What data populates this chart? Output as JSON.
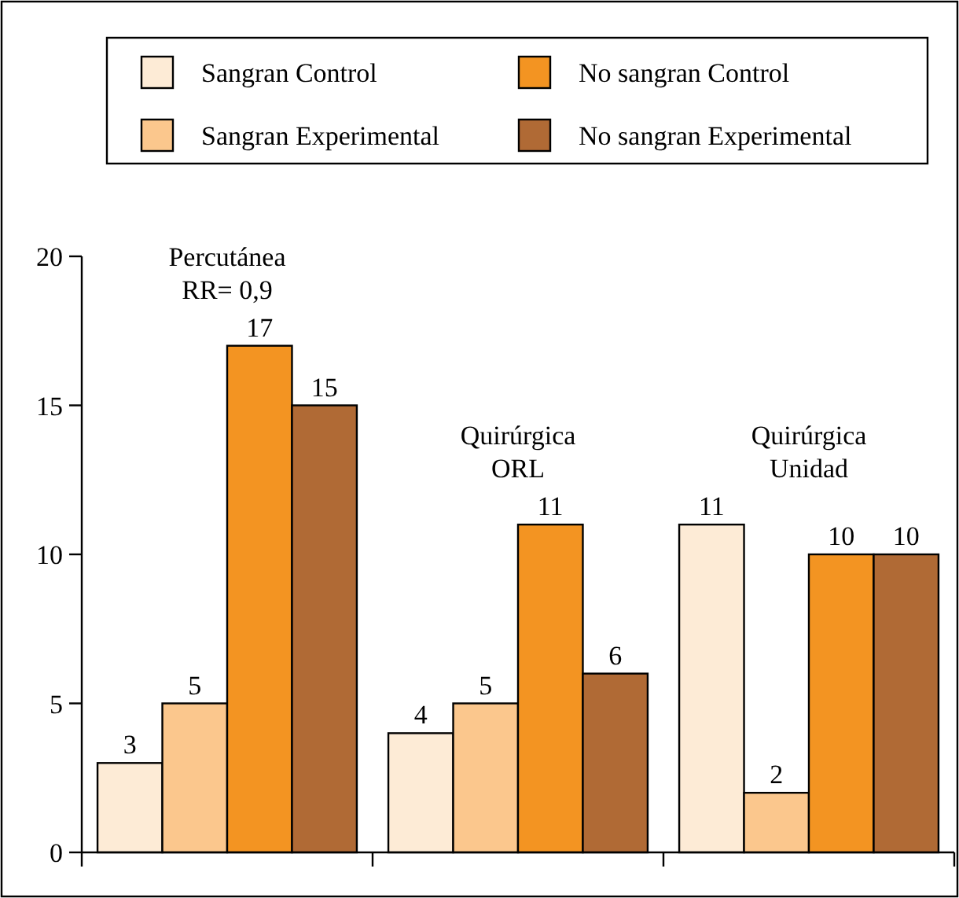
{
  "chart_data": {
    "type": "bar",
    "categories": [
      "Percutánea\nRR= 0,9",
      "Quirúrgica\nORL",
      "Quirúrgica\nUnidad"
    ],
    "series": [
      {
        "name": "Sangran Control",
        "color": "#fdebd6",
        "values": [
          3,
          4,
          11
        ]
      },
      {
        "name": "Sangran Experimental",
        "color": "#fbc78d",
        "values": [
          5,
          5,
          2
        ]
      },
      {
        "name": "No sangran Control",
        "color": "#f39422",
        "values": [
          17,
          11,
          10
        ]
      },
      {
        "name": "No sangran Experimental",
        "color": "#b06a35",
        "values": [
          15,
          6,
          10
        ]
      }
    ],
    "ylim": [
      0,
      20
    ],
    "yticks": [
      0,
      5,
      10,
      15,
      20
    ],
    "data_labels": true,
    "legend": "top",
    "grid": false
  }
}
